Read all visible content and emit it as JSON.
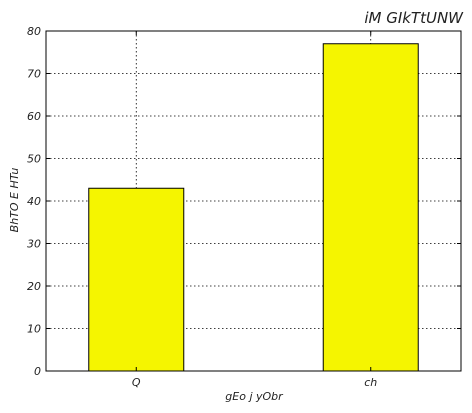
{
  "chart_data": {
    "type": "bar",
    "title": "iM GIkTtUNW",
    "xlabel": "gEo j yObr",
    "ylabel": "BhTO E HTu",
    "categories": [
      "Q",
      "ch"
    ],
    "values": [
      43,
      77
    ],
    "ylim": [
      0,
      80
    ],
    "yticks": [
      0,
      10,
      20,
      30,
      40,
      50,
      60,
      70,
      80
    ],
    "grid": true,
    "bar_color": "#f5f500",
    "bar_edge_color": "#000000"
  }
}
